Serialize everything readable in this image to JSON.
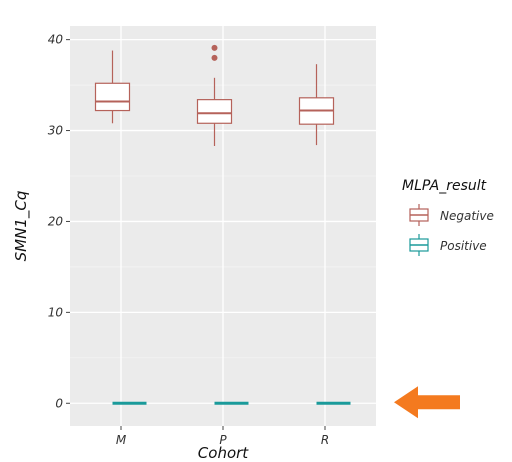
{
  "chart_data": {
    "type": "box",
    "xlabel": "Cohort",
    "ylabel": "SMN1_Cq",
    "categories": [
      "M",
      "P",
      "R"
    ],
    "yticks": [
      0,
      10,
      20,
      30,
      40
    ],
    "ylim": [
      -2.5,
      41.5
    ],
    "grid": true,
    "legend": {
      "title": "MLPA_result",
      "position": "right",
      "entries": [
        "Negative",
        "Positive"
      ]
    },
    "series": [
      {
        "name": "Negative",
        "color": "#b5625a",
        "boxes": [
          {
            "category": "M",
            "min": 30.8,
            "q1": 32.2,
            "median": 33.2,
            "q3": 35.2,
            "max": 38.8,
            "outliers": []
          },
          {
            "category": "P",
            "min": 28.3,
            "q1": 30.8,
            "median": 31.9,
            "q3": 33.4,
            "max": 35.8,
            "outliers": [
              39.1,
              38.0
            ]
          },
          {
            "category": "R",
            "min": 28.4,
            "q1": 30.7,
            "median": 32.2,
            "q3": 33.6,
            "max": 37.3,
            "outliers": []
          }
        ]
      },
      {
        "name": "Positive",
        "color": "#1a9a9a",
        "boxes": [
          {
            "category": "M",
            "min": 0,
            "q1": 0,
            "median": 0,
            "q3": 0,
            "max": 0,
            "outliers": []
          },
          {
            "category": "P",
            "min": 0,
            "q1": 0,
            "median": 0,
            "q3": 0,
            "max": 0,
            "outliers": []
          },
          {
            "category": "R",
            "min": 0,
            "q1": 0,
            "median": 0,
            "q3": 0,
            "max": 0,
            "outliers": []
          }
        ]
      }
    ]
  },
  "annotation": {
    "arrow_color": "#f47a1f",
    "points_to_y": 0
  }
}
